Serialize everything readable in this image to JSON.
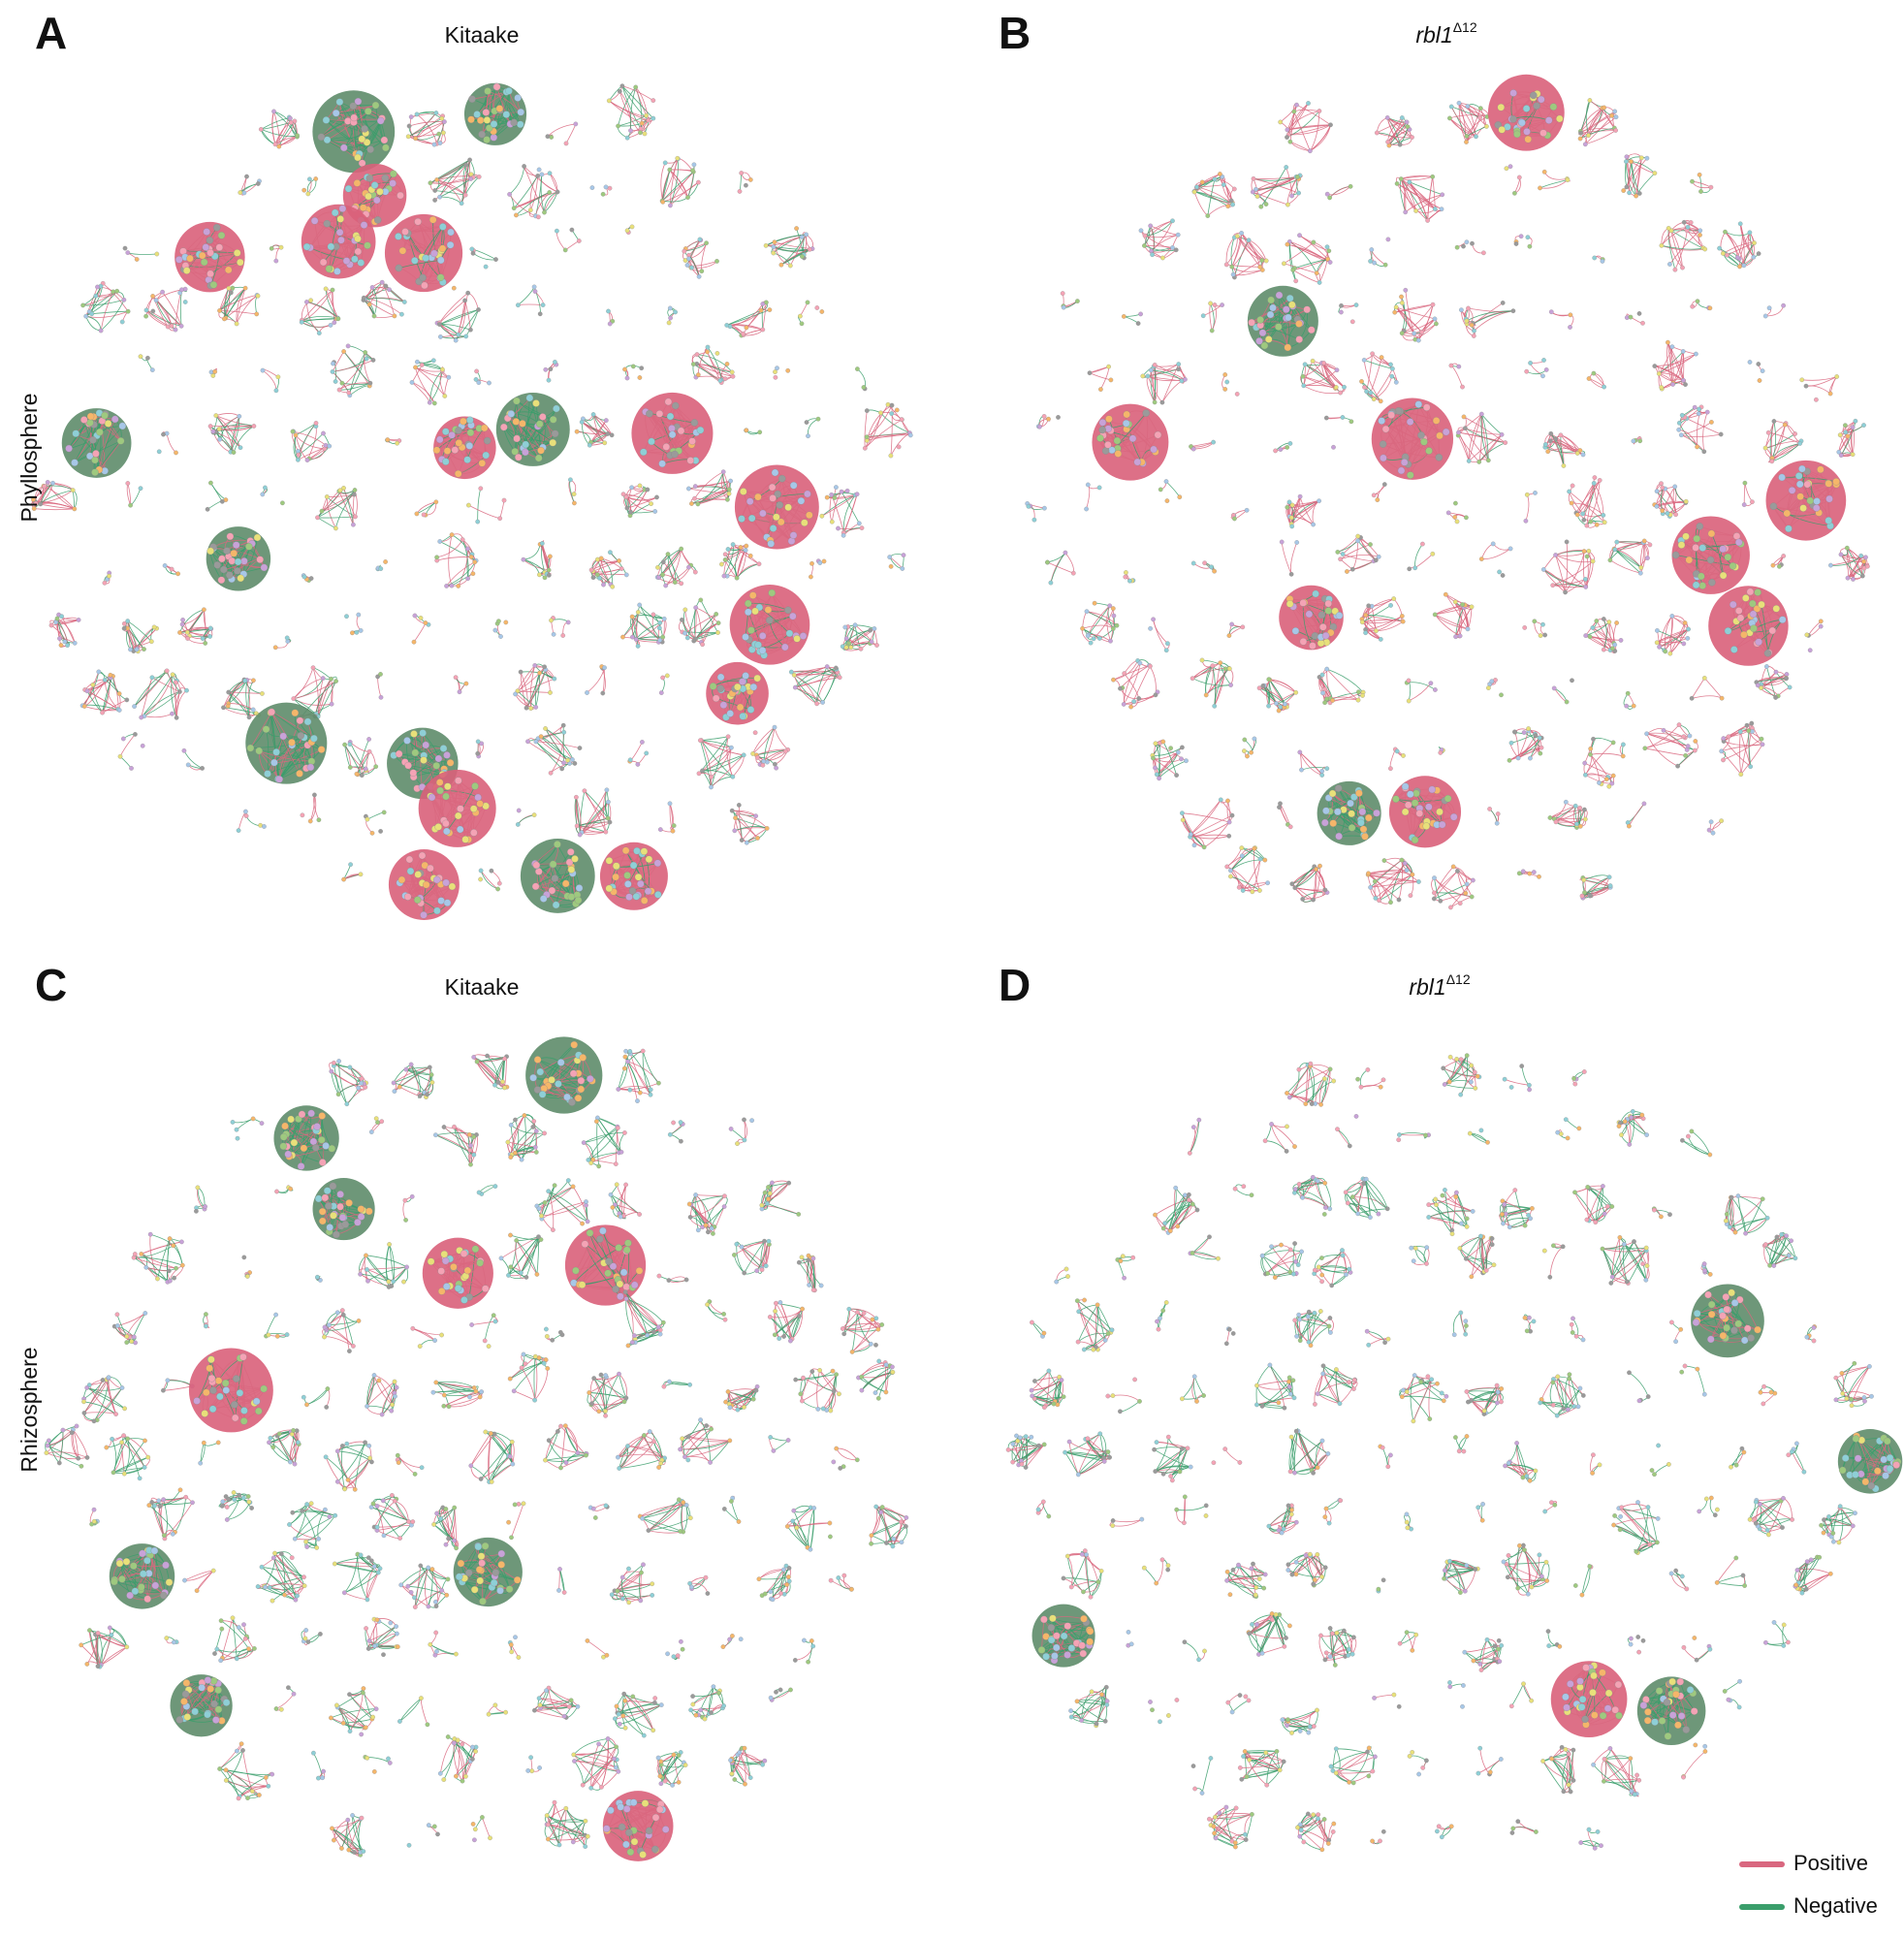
{
  "panels": [
    {
      "letter": "A",
      "title": "Kitaake"
    },
    {
      "letter": "B",
      "title": "rbl1",
      "title_superscript": "Δ12"
    },
    {
      "letter": "C",
      "title": "Kitaake"
    },
    {
      "letter": "D",
      "title": "rbl1",
      "title_superscript": "Δ12"
    }
  ],
  "row_labels": [
    "Phyllosphere",
    "Rhizosphere"
  ],
  "legend": [
    {
      "label": "Positive",
      "color": "#d9677f"
    },
    {
      "label": "Negative",
      "color": "#3a9e6b"
    }
  ]
}
